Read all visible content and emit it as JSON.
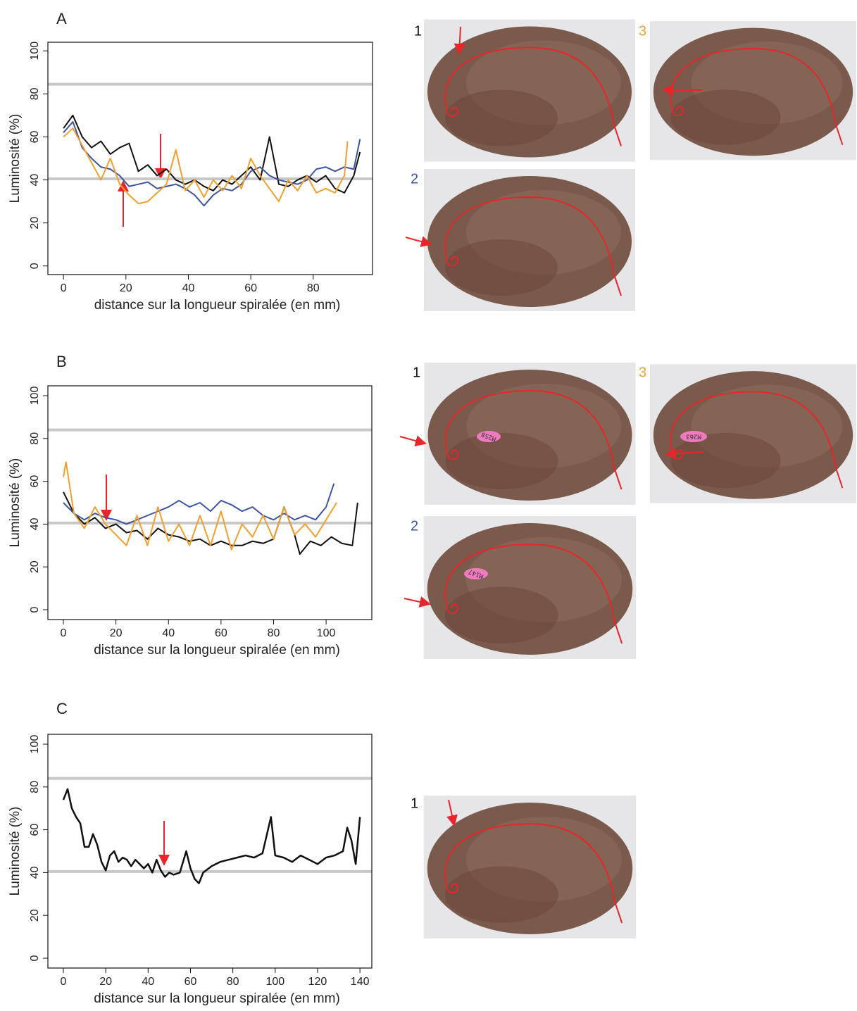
{
  "chart_data": [
    {
      "type": "line",
      "title": "A",
      "ylabel": "Luminosité (%)",
      "xlabel": "distance sur la longueur spiralée (en mm)",
      "xlim": [
        -5,
        99
      ],
      "ylim": [
        -4,
        104
      ],
      "xticks": [
        0,
        20,
        40,
        60,
        80
      ],
      "yticks": [
        0,
        20,
        40,
        60,
        80,
        100
      ],
      "reference_lines": [
        84.5,
        40.5
      ],
      "reference_color": "#c8c8c8",
      "series": [
        {
          "name": "1",
          "color": "#111111",
          "x": [
            0,
            3,
            6,
            9,
            12,
            15,
            18,
            21,
            24,
            27,
            30,
            33,
            36,
            39,
            42,
            45,
            48,
            51,
            54,
            57,
            60,
            63,
            66,
            69,
            72,
            75,
            78,
            81,
            84,
            87,
            90,
            93,
            95
          ],
          "values": [
            64,
            70,
            60,
            55,
            58,
            52,
            55,
            57,
            44,
            47,
            42,
            45,
            40,
            38,
            40,
            37,
            35,
            40,
            38,
            42,
            46,
            40,
            60,
            38,
            37,
            40,
            42,
            39,
            42,
            36,
            34,
            42,
            53
          ]
        },
        {
          "name": "2",
          "color": "#3f55a0",
          "x": [
            0,
            3,
            6,
            9,
            12,
            15,
            18,
            21,
            24,
            27,
            30,
            33,
            36,
            39,
            42,
            45,
            48,
            51,
            54,
            57,
            60,
            63,
            66,
            69,
            72,
            75,
            78,
            81,
            84,
            87,
            90,
            93,
            95
          ],
          "values": [
            62,
            67,
            55,
            50,
            46,
            45,
            42,
            37,
            38,
            39,
            36,
            37,
            38,
            36,
            33,
            28,
            33,
            36,
            35,
            38,
            44,
            46,
            42,
            40,
            39,
            38,
            40,
            45,
            46,
            44,
            46,
            45,
            59
          ]
        },
        {
          "name": "3",
          "color": "#f0a030",
          "x": [
            0,
            3,
            6,
            9,
            12,
            15,
            18,
            21,
            24,
            27,
            30,
            33,
            36,
            39,
            42,
            45,
            48,
            51,
            54,
            57,
            60,
            63,
            66,
            69,
            72,
            75,
            78,
            81,
            84,
            87,
            90,
            91
          ],
          "values": [
            60,
            64,
            56,
            48,
            40,
            50,
            38,
            33,
            29,
            30,
            34,
            38,
            54,
            35,
            40,
            32,
            40,
            35,
            42,
            36,
            50,
            42,
            36,
            30,
            40,
            35,
            42,
            34,
            36,
            34,
            42,
            58
          ]
        }
      ]
    },
    {
      "type": "line",
      "title": "B",
      "ylabel": "Luminosité (%)",
      "xlabel": "distance sur la longueur spiralée (en mm)",
      "xlim": [
        -5.9,
        117.4
      ],
      "ylim": [
        -4.6,
        104.6
      ],
      "xticks": [
        0,
        20,
        40,
        60,
        80,
        100
      ],
      "yticks": [
        0,
        20,
        40,
        60,
        80,
        100
      ],
      "reference_lines": [
        84,
        40.5
      ],
      "reference_color": "#c8c8c8",
      "annotations": [
        "M258",
        "M263",
        "M147"
      ],
      "series": [
        {
          "name": "1",
          "color": "#111111",
          "x": [
            0,
            4,
            8,
            12,
            16,
            20,
            24,
            28,
            32,
            36,
            40,
            44,
            48,
            52,
            56,
            60,
            64,
            68,
            72,
            76,
            80,
            84,
            88,
            90,
            94,
            98,
            102,
            106,
            110,
            112
          ],
          "values": [
            55,
            45,
            40,
            43,
            38,
            40,
            36,
            37,
            33,
            38,
            35,
            34,
            32,
            33,
            30,
            32,
            30,
            30,
            32,
            31,
            33,
            48,
            35,
            26,
            32,
            30,
            34,
            31,
            30,
            50
          ]
        },
        {
          "name": "2",
          "color": "#3f55a0",
          "x": [
            0,
            4,
            8,
            12,
            16,
            20,
            24,
            28,
            32,
            36,
            40,
            44,
            48,
            52,
            56,
            60,
            64,
            68,
            72,
            76,
            80,
            84,
            88,
            92,
            96,
            100,
            103
          ],
          "values": [
            50,
            45,
            42,
            45,
            43,
            42,
            40,
            42,
            44,
            46,
            48,
            51,
            48,
            50,
            46,
            51,
            49,
            46,
            48,
            44,
            42,
            45,
            42,
            44,
            42,
            48,
            59
          ]
        },
        {
          "name": "3",
          "color": "#f0a030",
          "x": [
            0,
            1,
            4,
            8,
            12,
            16,
            20,
            24,
            28,
            32,
            36,
            40,
            44,
            48,
            52,
            56,
            60,
            64,
            68,
            72,
            76,
            80,
            84,
            88,
            92,
            96,
            100,
            104
          ],
          "values": [
            62,
            69,
            45,
            38,
            48,
            40,
            35,
            30,
            44,
            30,
            48,
            32,
            40,
            30,
            44,
            30,
            46,
            28,
            40,
            34,
            44,
            33,
            48,
            35,
            40,
            34,
            42,
            50
          ]
        }
      ]
    },
    {
      "type": "line",
      "title": "C",
      "ylabel": "Luminosité (%)",
      "xlabel": "distance sur la longueur spiralée (en mm)",
      "xlim": [
        -7.3,
        145.6
      ],
      "ylim": [
        -4.6,
        104.6
      ],
      "xticks": [
        0,
        20,
        40,
        60,
        80,
        100,
        120,
        140
      ],
      "yticks": [
        0,
        20,
        40,
        60,
        80,
        100
      ],
      "reference_lines": [
        84,
        40.5
      ],
      "reference_color": "#c8c8c8",
      "series": [
        {
          "name": "1",
          "color": "#111111",
          "x": [
            0,
            2,
            4,
            6,
            8,
            10,
            12,
            14,
            16,
            18,
            20,
            22,
            24,
            26,
            28,
            30,
            32,
            34,
            36,
            38,
            40,
            42,
            44,
            46,
            48,
            50,
            52,
            55,
            58,
            60,
            62,
            64,
            66,
            70,
            74,
            78,
            82,
            86,
            90,
            94,
            98,
            100,
            104,
            108,
            112,
            116,
            120,
            124,
            128,
            132,
            134,
            136,
            138,
            140
          ],
          "values": [
            74,
            79,
            70,
            66,
            63,
            52,
            52,
            58,
            53,
            45,
            41,
            48,
            50,
            45,
            47,
            46,
            43,
            46,
            44,
            42,
            44,
            40,
            46,
            41,
            38,
            40,
            39,
            40,
            50,
            42,
            37,
            35,
            40,
            43,
            45,
            46,
            47,
            48,
            47,
            49,
            66,
            48,
            47,
            45,
            48,
            46,
            44,
            47,
            48,
            50,
            61,
            55,
            44,
            66
          ]
        }
      ]
    }
  ]
}
